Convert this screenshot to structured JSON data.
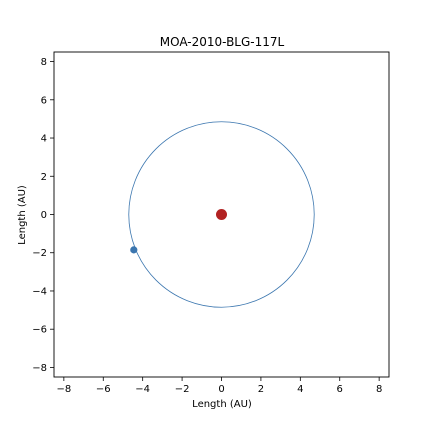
{
  "chart_data": {
    "type": "scatter",
    "title": "MOA-2010-BLG-117L",
    "xlabel": "Length (AU)",
    "ylabel": "Length (AU)",
    "xlim": [
      -8.5,
      8.5
    ],
    "ylim": [
      -8.5,
      8.5
    ],
    "xticks": [
      -8,
      -6,
      -4,
      -2,
      0,
      2,
      4,
      6,
      8
    ],
    "yticks": [
      -8,
      -6,
      -4,
      -2,
      0,
      2,
      4,
      6,
      8
    ],
    "grid": false,
    "star": {
      "x": 0,
      "y": 0,
      "color": "#b22222"
    },
    "planet": {
      "x": -4.45,
      "y": -1.85,
      "color": "#3b76af"
    },
    "orbit": {
      "radius": 4.85,
      "color": "#3b76af"
    }
  }
}
